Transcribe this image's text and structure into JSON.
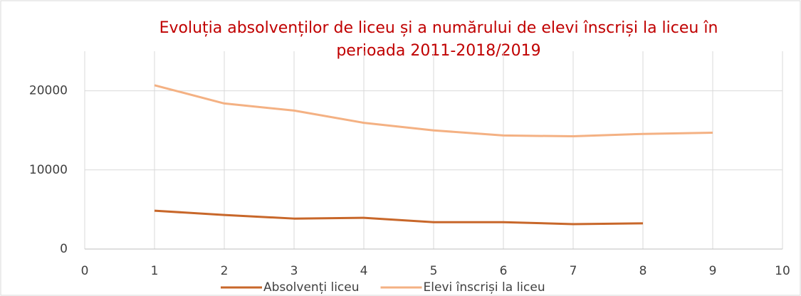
{
  "chart_data": {
    "type": "line",
    "title_lines": [
      "Evoluția absolvenților de liceu și a numărului de elevi înscriși la liceu în",
      "perioada 2011-2018/2019"
    ],
    "x": [
      1,
      2,
      3,
      4,
      5,
      6,
      7,
      8,
      9
    ],
    "series": [
      {
        "name": "Absolvenți liceu",
        "color": "#c8672a",
        "values": [
          4850,
          4300,
          3850,
          3950,
          3400,
          3400,
          3150,
          3250,
          null
        ]
      },
      {
        "name": "Elevi înscriși la liceu",
        "color": "#f4b183",
        "values": [
          20700,
          18400,
          17500,
          15950,
          15000,
          14350,
          14250,
          14550,
          14700
        ]
      }
    ],
    "xlim": [
      0,
      10
    ],
    "xticks": [
      0,
      1,
      2,
      3,
      4,
      5,
      6,
      7,
      8,
      9,
      10
    ],
    "ylim": [
      0,
      25000
    ],
    "yticks": [
      0,
      10000,
      20000
    ],
    "grid": true,
    "legend": "bottom"
  }
}
